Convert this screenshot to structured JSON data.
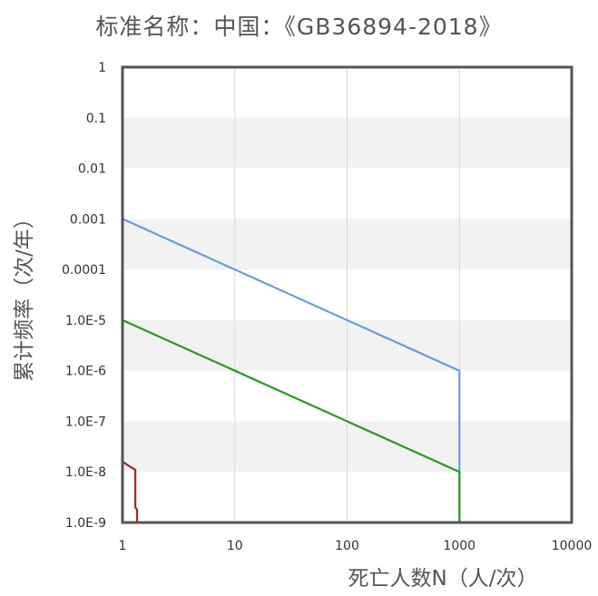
{
  "chart_data": {
    "type": "line",
    "title": "标准名称：中国：《GB36894-2018》",
    "xlabel": "死亡人数N（人/次）",
    "ylabel": "累计频率（次/年）",
    "x_scale": "log",
    "y_scale": "log",
    "xlim": [
      1,
      10000
    ],
    "ylim": [
      1e-09,
      1
    ],
    "x_tick_labels": [
      "1",
      "10",
      "100",
      "1000",
      "10000"
    ],
    "y_tick_labels": [
      "1",
      "0.1",
      "0.01",
      "0.001",
      "0.0001",
      "1.0E-5",
      "1.0E-6",
      "1.0E-7",
      "1.0E-8",
      "1.0E-9"
    ],
    "grid": true,
    "legend": "none",
    "series": [
      {
        "color": "#6a9be0",
        "x": [
          1,
          1000,
          1000
        ],
        "y": [
          0.001,
          1e-06,
          1e-09
        ]
      },
      {
        "color": "#2a9a1f",
        "x": [
          1,
          1000,
          1000
        ],
        "y": [
          1e-05,
          1e-08,
          1e-09
        ]
      },
      {
        "color": "#a52a2a",
        "x": [
          1,
          1.15,
          1.3,
          1.3,
          1.35,
          1.35
        ],
        "y": [
          1.6e-08,
          1.3e-08,
          1.1e-08,
          2e-09,
          1.8e-09,
          1e-09
        ]
      }
    ]
  }
}
